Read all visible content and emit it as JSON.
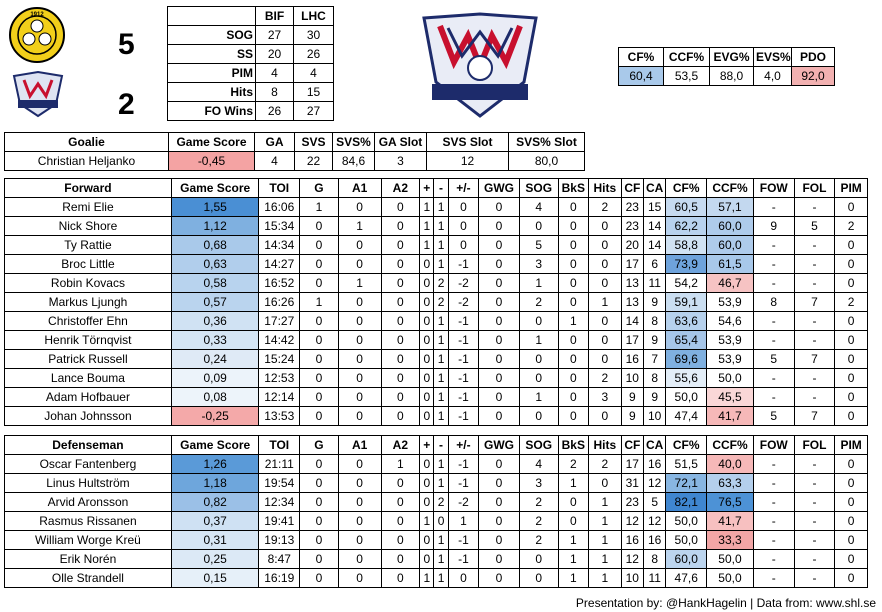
{
  "header": {
    "home_score": "5",
    "away_score": "2",
    "home_logo_text": "1912 BIF",
    "away_logo_text": "LINKÖPING",
    "center_logo_text": "LINKÖPING"
  },
  "team_stats": {
    "columns": [
      "",
      "BIF",
      "LHC"
    ],
    "rows": [
      [
        "SOG",
        "27",
        "30"
      ],
      [
        "SS",
        "20",
        "26"
      ],
      [
        "PIM",
        "4",
        "4"
      ],
      [
        "Hits",
        "8",
        "15"
      ],
      [
        "FO Wins",
        "26",
        "27"
      ]
    ]
  },
  "team_possession": {
    "columns": [
      "CF%",
      "CCF%",
      "EVG%",
      "EVS%",
      "PDO"
    ],
    "values": [
      "60,4",
      "53,5",
      "88,0",
      "4,0",
      "92,0"
    ],
    "colors": [
      "#a9c9ea",
      "#ffffff",
      "#ffffff",
      "#ffffff",
      "#f2b1b1"
    ]
  },
  "goalie": {
    "columns": [
      "Goalie",
      "Game Score",
      "GA",
      "SVS",
      "SVS%",
      "GA Slot",
      "SVS Slot",
      "SVS% Slot"
    ],
    "rows": [
      [
        "Christian Heljanko",
        "-0,45",
        "4",
        "22",
        "84,6",
        "3",
        "12",
        "80,0"
      ]
    ],
    "gs_colors": [
      "#f4a3a3"
    ]
  },
  "forwards": {
    "columns": [
      "Forward",
      "Game Score",
      "TOI",
      "G",
      "A1",
      "A2",
      "+",
      "-",
      "+/-",
      "GWG",
      "SOG",
      "BkS",
      "Hits",
      "CF",
      "CA",
      "CF%",
      "CCF%",
      "FOW",
      "FOL",
      "PIM"
    ],
    "rows": [
      [
        "Remi Elie",
        "1,55",
        "16:06",
        "1",
        "0",
        "0",
        "1",
        "1",
        "0",
        "0",
        "4",
        "0",
        "2",
        "23",
        "15",
        "60,5",
        "57,1",
        "-",
        "-",
        "0"
      ],
      [
        "Nick Shore",
        "1,12",
        "15:34",
        "0",
        "1",
        "0",
        "1",
        "1",
        "0",
        "0",
        "0",
        "0",
        "0",
        "23",
        "14",
        "62,2",
        "60,0",
        "9",
        "5",
        "2"
      ],
      [
        "Ty Rattie",
        "0,68",
        "14:34",
        "0",
        "0",
        "0",
        "1",
        "1",
        "0",
        "0",
        "5",
        "0",
        "0",
        "20",
        "14",
        "58,8",
        "60,0",
        "-",
        "-",
        "0"
      ],
      [
        "Broc Little",
        "0,63",
        "14:27",
        "0",
        "0",
        "0",
        "0",
        "1",
        "-1",
        "0",
        "3",
        "0",
        "0",
        "17",
        "6",
        "73,9",
        "61,5",
        "-",
        "-",
        "0"
      ],
      [
        "Robin Kovacs",
        "0,58",
        "16:52",
        "0",
        "1",
        "0",
        "0",
        "2",
        "-2",
        "0",
        "1",
        "0",
        "0",
        "13",
        "11",
        "54,2",
        "46,7",
        "-",
        "-",
        "0"
      ],
      [
        "Markus Ljungh",
        "0,57",
        "16:26",
        "1",
        "0",
        "0",
        "0",
        "2",
        "-2",
        "0",
        "2",
        "0",
        "1",
        "13",
        "9",
        "59,1",
        "53,9",
        "8",
        "7",
        "2"
      ],
      [
        "Christoffer Ehn",
        "0,36",
        "17:27",
        "0",
        "0",
        "0",
        "0",
        "1",
        "-1",
        "0",
        "0",
        "1",
        "0",
        "14",
        "8",
        "63,6",
        "54,6",
        "-",
        "-",
        "0"
      ],
      [
        "Henrik Törnqvist",
        "0,33",
        "14:42",
        "0",
        "0",
        "0",
        "0",
        "1",
        "-1",
        "0",
        "1",
        "0",
        "0",
        "17",
        "9",
        "65,4",
        "53,9",
        "-",
        "-",
        "0"
      ],
      [
        "Patrick Russell",
        "0,24",
        "15:24",
        "0",
        "0",
        "0",
        "0",
        "1",
        "-1",
        "0",
        "0",
        "0",
        "0",
        "16",
        "7",
        "69,6",
        "53,9",
        "5",
        "7",
        "0"
      ],
      [
        "Lance Bouma",
        "0,09",
        "12:53",
        "0",
        "0",
        "0",
        "0",
        "1",
        "-1",
        "0",
        "0",
        "0",
        "2",
        "10",
        "8",
        "55,6",
        "50,0",
        "-",
        "-",
        "0"
      ],
      [
        "Adam Hofbauer",
        "0,08",
        "12:14",
        "0",
        "0",
        "0",
        "0",
        "1",
        "-1",
        "0",
        "1",
        "0",
        "3",
        "9",
        "9",
        "50,0",
        "45,5",
        "-",
        "-",
        "0"
      ],
      [
        "Johan Johnsson",
        "-0,25",
        "13:53",
        "0",
        "0",
        "0",
        "0",
        "1",
        "-1",
        "0",
        "0",
        "0",
        "0",
        "9",
        "10",
        "47,4",
        "41,7",
        "5",
        "7",
        "0"
      ]
    ],
    "gs_colors": [
      "#4a8fd4",
      "#7fb0e0",
      "#a9c9ea",
      "#b1ceec",
      "#b8d3ee",
      "#bad4ee",
      "#d0e2f3",
      "#d4e5f4",
      "#dfeaf6",
      "#ecf3fa",
      "#edf4fa",
      "#f4a9a9"
    ],
    "cf_colors": [
      "#c6daf0",
      "#b8d2ee",
      "#d0e2f3",
      "#6ea3dc",
      "#ffffff",
      "#cadef1",
      "#b6d1ed",
      "#a6c6e9",
      "#7fb0e0",
      "#e3eef8",
      "#ffffff",
      "#ffffff"
    ],
    "ccf_colors": [
      "#c3d8ef",
      "#aecbeb",
      "#aecbeb",
      "#a8c8ea",
      "#f6c3c3",
      "#ffffff",
      "#ffffff",
      "#ffffff",
      "#ffffff",
      "#ffffff",
      "#fad7d7",
      "#f6b8b8"
    ]
  },
  "defense": {
    "columns": [
      "Defenseman",
      "Game Score",
      "TOI",
      "G",
      "A1",
      "A2",
      "+",
      "-",
      "+/-",
      "GWG",
      "SOG",
      "BkS",
      "Hits",
      "CF",
      "CA",
      "CF%",
      "CCF%",
      "FOW",
      "FOL",
      "PIM"
    ],
    "rows": [
      [
        "Oscar Fantenberg",
        "1,26",
        "21:11",
        "0",
        "0",
        "1",
        "0",
        "1",
        "-1",
        "0",
        "4",
        "2",
        "2",
        "17",
        "16",
        "51,5",
        "40,0",
        "-",
        "-",
        "0"
      ],
      [
        "Linus Hultström",
        "1,18",
        "19:54",
        "0",
        "0",
        "0",
        "0",
        "1",
        "-1",
        "0",
        "3",
        "1",
        "0",
        "31",
        "12",
        "72,1",
        "63,3",
        "-",
        "-",
        "0"
      ],
      [
        "Arvid Aronsson",
        "0,82",
        "12:34",
        "0",
        "0",
        "0",
        "0",
        "2",
        "-2",
        "0",
        "2",
        "0",
        "1",
        "23",
        "5",
        "82,1",
        "76,5",
        "-",
        "-",
        "0"
      ],
      [
        "Rasmus Rissanen",
        "0,37",
        "19:41",
        "0",
        "0",
        "0",
        "1",
        "0",
        "1",
        "0",
        "2",
        "0",
        "1",
        "12",
        "12",
        "50,0",
        "41,7",
        "-",
        "-",
        "0"
      ],
      [
        "William Worge Kreü",
        "0,31",
        "19:13",
        "0",
        "0",
        "0",
        "0",
        "1",
        "-1",
        "0",
        "2",
        "1",
        "1",
        "16",
        "16",
        "50,0",
        "33,3",
        "-",
        "-",
        "0"
      ],
      [
        "Erik Norén",
        "0,25",
        "8:47",
        "0",
        "0",
        "0",
        "0",
        "1",
        "-1",
        "0",
        "0",
        "1",
        "1",
        "12",
        "8",
        "60,0",
        "50,0",
        "-",
        "-",
        "0"
      ],
      [
        "Olle Strandell",
        "0,15",
        "16:19",
        "0",
        "0",
        "0",
        "1",
        "1",
        "0",
        "0",
        "0",
        "1",
        "1",
        "10",
        "11",
        "47,6",
        "50,0",
        "-",
        "-",
        "0"
      ]
    ],
    "gs_colors": [
      "#5a9ad8",
      "#6ea6dc",
      "#9bc0e7",
      "#cfe1f3",
      "#d6e6f5",
      "#dce9f6",
      "#e6f0f9"
    ],
    "cf_colors": [
      "#ffffff",
      "#88b6e2",
      "#3f86d0",
      "#ffffff",
      "#ffffff",
      "#bcd5ef",
      "#ffffff"
    ],
    "ccf_colors": [
      "#f6b8b8",
      "#b4cfec",
      "#4d92d6",
      "#f7c0c0",
      "#f2a6a6",
      "#ffffff",
      "#ffffff"
    ]
  },
  "footer": "Presentation by: @HankHagelin | Data from: www.shl.se"
}
